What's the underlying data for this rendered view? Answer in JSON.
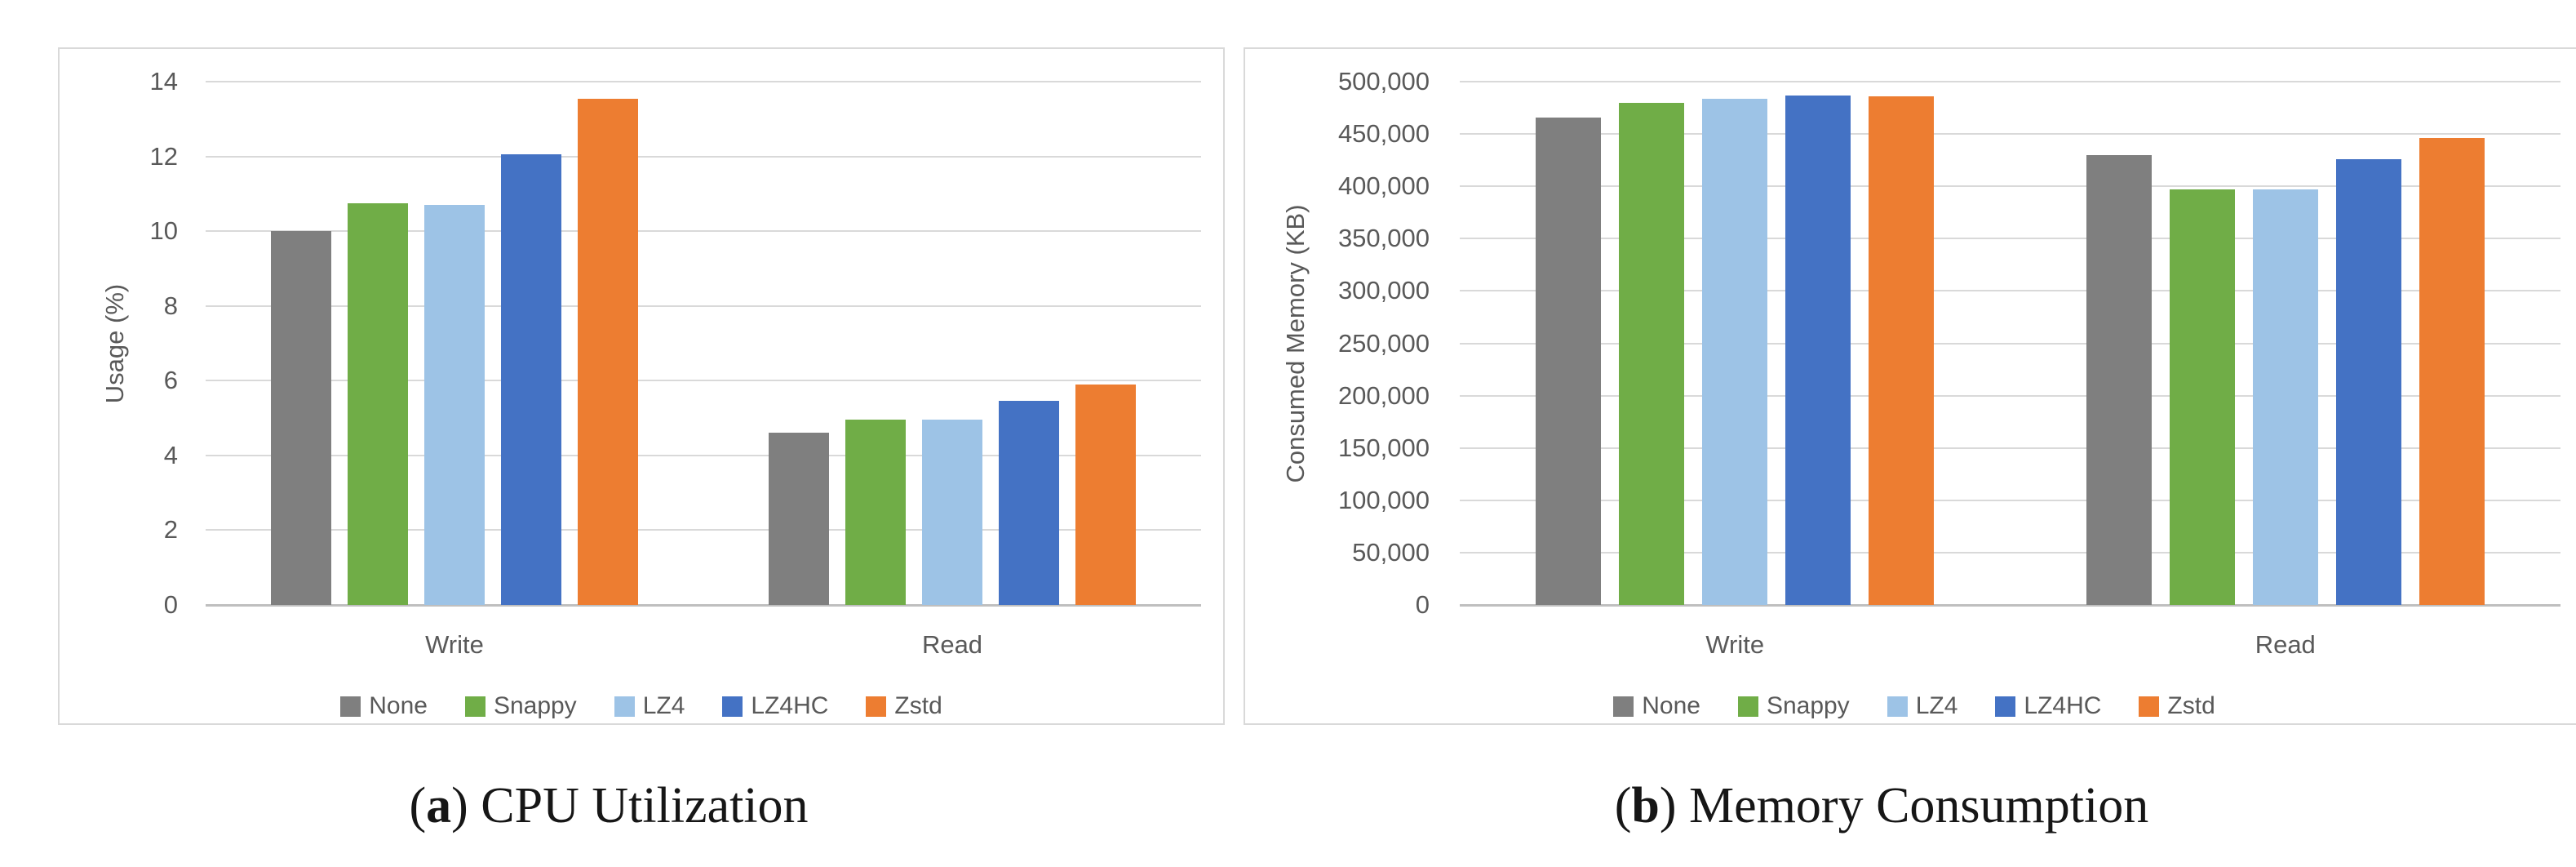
{
  "styles": {
    "grid_color": "#D9D9D9",
    "axis_color": "#BFBFBF",
    "tick_text_color": "#595959",
    "caption_color": "#161616",
    "card_border_color": "#D9D9D9",
    "background": "#FFFFFF"
  },
  "chart_data": [
    {
      "type": "bar",
      "panel": "a",
      "caption": {
        "open": "(",
        "letter": "a",
        "close": ")",
        "title": "CPU Utilization"
      },
      "ylabel": "Usage (%)",
      "xlabel": "",
      "categories": [
        "Write",
        "Read"
      ],
      "series": [
        {
          "name": "None",
          "color": "#7F7F7F",
          "values": [
            10.0,
            4.6
          ]
        },
        {
          "name": "Snappy",
          "color": "#70AD47",
          "values": [
            10.75,
            4.95
          ]
        },
        {
          "name": "LZ4",
          "color": "#9DC3E6",
          "values": [
            10.7,
            4.95
          ]
        },
        {
          "name": "LZ4HC",
          "color": "#4472C4",
          "values": [
            12.05,
            5.45
          ]
        },
        {
          "name": "Zstd",
          "color": "#ED7D31",
          "values": [
            13.55,
            5.9
          ]
        }
      ],
      "ylim": [
        0,
        14
      ],
      "ytick_labels": [
        "14",
        "12",
        "10",
        "8",
        "6",
        "4",
        "2",
        "0"
      ],
      "grid": true,
      "legend_position": "bottom"
    },
    {
      "type": "bar",
      "panel": "b",
      "caption": {
        "open": "(",
        "letter": "b",
        "close": ")",
        "title": "Memory Consumption"
      },
      "ylabel": "Consumed Memory (KB)",
      "xlabel": "",
      "categories": [
        "Write",
        "Read"
      ],
      "series": [
        {
          "name": "None",
          "color": "#7F7F7F",
          "values": [
            466000,
            430000
          ]
        },
        {
          "name": "Snappy",
          "color": "#70AD47",
          "values": [
            480000,
            397000
          ]
        },
        {
          "name": "LZ4",
          "color": "#9DC3E6",
          "values": [
            484000,
            397000
          ]
        },
        {
          "name": "LZ4HC",
          "color": "#4472C4",
          "values": [
            486500,
            426000
          ]
        },
        {
          "name": "Zstd",
          "color": "#ED7D31",
          "values": [
            486000,
            446000
          ]
        }
      ],
      "ylim": [
        0,
        500000
      ],
      "ytick_labels": [
        "500,000",
        "450,000",
        "400,000",
        "350,000",
        "300,000",
        "250,000",
        "200,000",
        "150,000",
        "100,000",
        "50,000",
        "0"
      ],
      "grid": true,
      "legend_position": "bottom"
    }
  ]
}
